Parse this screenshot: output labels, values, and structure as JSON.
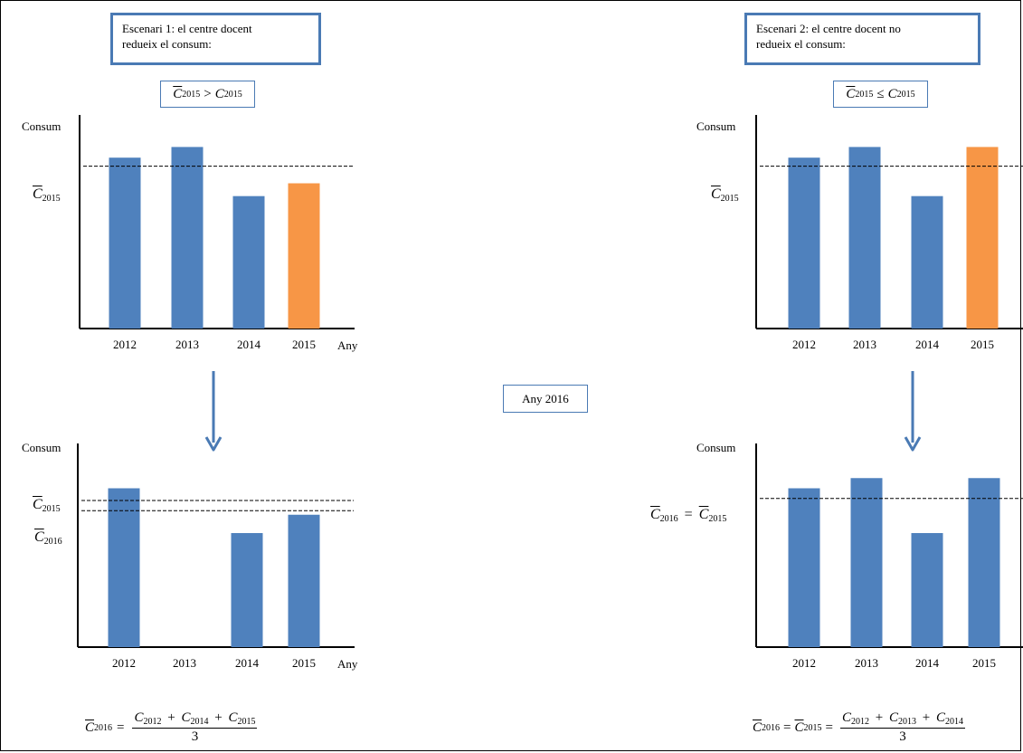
{
  "scenario1": {
    "title_line1": "Escenari 1: el centre docent",
    "title_line2": "redueix el consum:",
    "condition": ">"
  },
  "scenario2": {
    "title_line1": "Escenari 2: el centre docent no",
    "title_line2": "redueix el consum:",
    "condition": "≤"
  },
  "center_label": "Any 2016",
  "axis": {
    "y_label": "Consum",
    "x_label": "Any"
  },
  "symbols": {
    "C": "C",
    "y2012": "2012",
    "y2013": "2013",
    "y2014": "2014",
    "y2015": "2015",
    "y2016": "2016",
    "three": "3",
    "eq": "=",
    "plus": "+"
  },
  "colors": {
    "bar_blue": "#4f81bd",
    "bar_orange": "#f79646",
    "box_border": "#4a7ab4",
    "arrow": "#4a7ab4"
  },
  "chart_data": [
    {
      "id": "top-left",
      "type": "bar",
      "categories": [
        "2012",
        "2013",
        "2014",
        "2015"
      ],
      "values": [
        80,
        85,
        62,
        68
      ],
      "highlight_index": 3,
      "ylim": [
        0,
        100
      ],
      "reference_lines": [
        76
      ],
      "ylabel": "Consum",
      "xlabel": "Any"
    },
    {
      "id": "top-right",
      "type": "bar",
      "categories": [
        "2012",
        "2013",
        "2014",
        "2015"
      ],
      "values": [
        80,
        85,
        62,
        85
      ],
      "highlight_index": 3,
      "ylim": [
        0,
        100
      ],
      "reference_lines": [
        76
      ],
      "ylabel": "Consum",
      "xlabel": ""
    },
    {
      "id": "bottom-left",
      "type": "bar",
      "categories": [
        "2012",
        "2013",
        "2014",
        "2015"
      ],
      "values": [
        78,
        null,
        56,
        65
      ],
      "highlight_index": null,
      "ylim": [
        0,
        100
      ],
      "reference_lines": [
        72,
        67
      ],
      "ylabel": "Consum",
      "xlabel": "Any"
    },
    {
      "id": "bottom-right",
      "type": "bar",
      "categories": [
        "2012",
        "2013",
        "2014",
        "2015"
      ],
      "values": [
        78,
        83,
        56,
        83
      ],
      "highlight_index": null,
      "ylim": [
        0,
        100
      ],
      "reference_lines": [
        73
      ],
      "ylabel": "Consum",
      "xlabel": ""
    }
  ]
}
